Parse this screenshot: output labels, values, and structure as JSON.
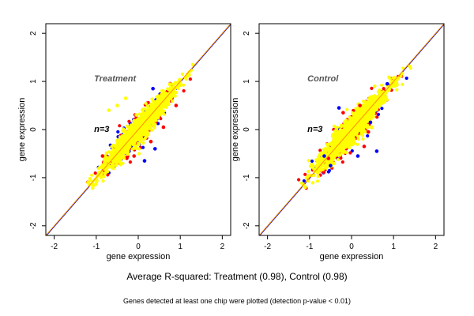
{
  "figure": {
    "caption": "Average R-squared: Treatment (0.98), Control (0.98)",
    "footnote": "Genes detected at least one chip were plotted (detection p-value < 0.01)"
  },
  "colors": {
    "point_primary": "#ffff00",
    "point_secondary": "#ff0000",
    "point_tertiary": "#0000ff",
    "point_dark": "#000080",
    "diagonal_orange": "#ff8c00",
    "diagonal_blue": "#0000cc",
    "annotation_text": "#555555"
  },
  "chart_data": [
    {
      "type": "scatter",
      "title": "",
      "annotation": "Treatment",
      "n_label": "n=3",
      "xlabel": "gene expression",
      "ylabel": "gene expression",
      "xlim": [
        -2.2,
        2.2
      ],
      "ylim": [
        -2.2,
        2.2
      ],
      "x_ticks": [
        -2,
        -1,
        0,
        1,
        2
      ],
      "y_ticks": [
        -2,
        -1,
        0,
        1,
        2
      ],
      "grid": false,
      "reference_lines": [
        "y = x"
      ],
      "point_cloud": {
        "description_color_order": [
          "blue",
          "red",
          "yellow"
        ],
        "x_range": [
          -1.15,
          1.35
        ],
        "y_range": [
          -1.15,
          1.3
        ],
        "spread": 0.12
      },
      "outliers": [
        {
          "x": 0.35,
          "y": 0.85,
          "color": "blue"
        },
        {
          "x": 0.15,
          "y": -0.65,
          "color": "blue"
        },
        {
          "x": 0.4,
          "y": -0.4,
          "color": "blue"
        },
        {
          "x": -0.5,
          "y": 0.5,
          "color": "yellow"
        },
        {
          "x": -0.3,
          "y": 0.65,
          "color": "yellow"
        },
        {
          "x": -0.7,
          "y": 0.4,
          "color": "yellow"
        },
        {
          "x": 0.6,
          "y": 0.05,
          "color": "red"
        },
        {
          "x": -0.1,
          "y": -0.55,
          "color": "red"
        },
        {
          "x": 0.3,
          "y": -0.25,
          "color": "red"
        },
        {
          "x": -0.85,
          "y": -0.55,
          "color": "red"
        },
        {
          "x": 0.9,
          "y": 0.5,
          "color": "red"
        }
      ]
    },
    {
      "type": "scatter",
      "title": "",
      "annotation": "Control",
      "n_label": "n=3",
      "xlabel": "gene expression",
      "ylabel": "gene expression",
      "xlim": [
        -2.2,
        2.2
      ],
      "ylim": [
        -2.2,
        2.2
      ],
      "x_ticks": [
        -2,
        -1,
        0,
        1,
        2
      ],
      "y_ticks": [
        -2,
        -1,
        0,
        1,
        2
      ],
      "grid": false,
      "reference_lines": [
        "y = x"
      ],
      "point_cloud": {
        "description_color_order": [
          "blue",
          "red",
          "yellow"
        ],
        "x_range": [
          -1.15,
          1.35
        ],
        "y_range": [
          -1.15,
          1.3
        ],
        "spread": 0.13
      },
      "outliers": [
        {
          "x": 0.85,
          "y": 0.95,
          "color": "blue"
        },
        {
          "x": -0.3,
          "y": 0.45,
          "color": "blue"
        },
        {
          "x": 0.15,
          "y": -0.55,
          "color": "blue"
        },
        {
          "x": -0.5,
          "y": -0.75,
          "color": "blue"
        },
        {
          "x": 0.45,
          "y": 0.15,
          "color": "blue"
        },
        {
          "x": 0.6,
          "y": -0.45,
          "color": "blue"
        },
        {
          "x": -0.65,
          "y": -0.55,
          "color": "blue"
        },
        {
          "x": 0.55,
          "y": 0.9,
          "color": "yellow"
        },
        {
          "x": -0.2,
          "y": 0.35,
          "color": "red"
        },
        {
          "x": 0.3,
          "y": -0.35,
          "color": "red"
        },
        {
          "x": -0.55,
          "y": -0.6,
          "color": "red"
        },
        {
          "x": 0.2,
          "y": 0.5,
          "color": "red"
        },
        {
          "x": 0.4,
          "y": -0.05,
          "color": "red"
        }
      ]
    }
  ]
}
